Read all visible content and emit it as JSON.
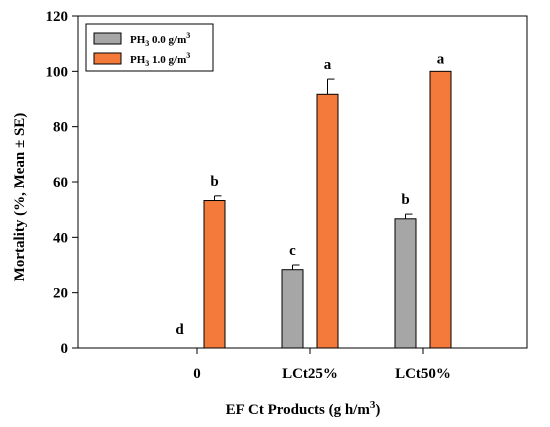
{
  "chart_data": {
    "type": "bar",
    "title": "",
    "xlabel": "EF Ct Products (g h/m³)",
    "xlabel_parts": {
      "main": "EF Ct Products (g h/m",
      "sup": "3",
      "end": ")"
    },
    "ylabel": "Mortality (%, Mean ± SE)",
    "ylim": [
      0,
      120
    ],
    "yticks": [
      0,
      20,
      40,
      60,
      80,
      100,
      120
    ],
    "categories": [
      "0",
      "LCt25%",
      "LCt50%"
    ],
    "series": [
      {
        "name": "PH3 0.0 g/m3",
        "legend": {
          "pre": "PH",
          "sub": "3",
          "mid": " 0.0 g/m",
          "sup": "3"
        },
        "color": "#a6a6a6",
        "values": [
          0,
          28.3,
          46.7
        ],
        "errors": [
          0,
          1.7,
          1.7
        ],
        "letters": [
          "d",
          "c",
          "b"
        ]
      },
      {
        "name": "PH3 1.0 g/m3",
        "legend": {
          "pre": "PH",
          "sub": "3",
          "mid": " 1.0 g/m",
          "sup": "3"
        },
        "color": "#f47a3c",
        "values": [
          53.3,
          91.7,
          100
        ],
        "errors": [
          1.7,
          5.5,
          0
        ],
        "letters": [
          "b",
          "a",
          "a"
        ]
      }
    ],
    "legend_position": "top-left",
    "grid": false
  }
}
